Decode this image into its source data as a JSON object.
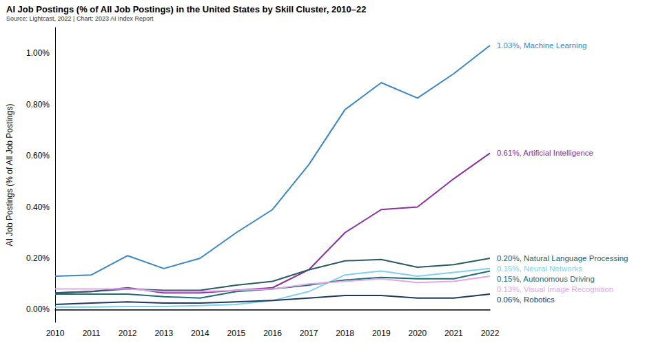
{
  "chart_data": {
    "type": "line",
    "title": "AI Job Postings (% of All Job Postings) in the United States by Skill Cluster, 2010–22",
    "subtitle": "Source: Lightcast, 2022 | Chart: 2023 AI Index Report",
    "y_label": "AI Job Postings (% of All Job Postings)",
    "categories": [
      "2010",
      "2011",
      "2012",
      "2013",
      "2014",
      "2015",
      "2016",
      "2017",
      "2018",
      "2019",
      "2020",
      "2021",
      "2022"
    ],
    "ylim": [
      -0.05,
      1.1
    ],
    "yticks": [
      {
        "value": 0,
        "label": "0.00%"
      },
      {
        "value": 0.2,
        "label": "0.20%"
      },
      {
        "value": 0.4,
        "label": "0.40%"
      },
      {
        "value": 0.6,
        "label": "0.60%"
      },
      {
        "value": 0.8,
        "label": "0.80%"
      },
      {
        "value": 1.0,
        "label": "1.00%"
      }
    ],
    "grid": false,
    "series": [
      {
        "name": "Machine Learning",
        "color": "#3a87c6",
        "end_label": "1.03%, Machine Learning",
        "values": [
          0.13,
          0.135,
          0.21,
          0.16,
          0.2,
          0.3,
          0.39,
          0.565,
          0.78,
          0.885,
          0.825,
          0.92,
          1.03
        ]
      },
      {
        "name": "Artificial Intelligence",
        "color": "#8b2fa0",
        "end_label": "0.61%, Artificial Intelligence",
        "values": [
          0.065,
          0.07,
          0.085,
          0.065,
          0.065,
          0.075,
          0.085,
          0.155,
          0.3,
          0.39,
          0.4,
          0.51,
          0.61
        ]
      },
      {
        "name": "Natural Language Processing",
        "color": "#2b5a63",
        "end_label": "0.20%, Natural Language Processing",
        "values": [
          0.065,
          0.07,
          0.08,
          0.075,
          0.075,
          0.095,
          0.11,
          0.155,
          0.19,
          0.195,
          0.165,
          0.175,
          0.2
        ]
      },
      {
        "name": "Neural Networks",
        "color": "#7fd0f0",
        "end_label": "0.16%, Neural Networks",
        "values": [
          0.01,
          0.01,
          0.012,
          0.012,
          0.015,
          0.02,
          0.035,
          0.07,
          0.135,
          0.15,
          0.13,
          0.145,
          0.16
        ]
      },
      {
        "name": "Autonomous Driving",
        "color": "#1f6e6e",
        "end_label": "0.15%, Autonomous Driving",
        "values": [
          0.06,
          0.06,
          0.06,
          0.05,
          0.045,
          0.07,
          0.08,
          0.095,
          0.115,
          0.125,
          0.12,
          0.12,
          0.15
        ]
      },
      {
        "name": "Visual Image Recognition",
        "color": "#e0a8e8",
        "end_label": "0.13%, Visual Image Recognition",
        "values": [
          0.08,
          0.08,
          0.08,
          0.07,
          0.07,
          0.075,
          0.08,
          0.1,
          0.11,
          0.12,
          0.105,
          0.11,
          0.13
        ]
      },
      {
        "name": "Robotics",
        "color": "#1d3a5c",
        "end_label": "0.06%, Robotics",
        "values": [
          0.02,
          0.025,
          0.03,
          0.025,
          0.025,
          0.03,
          0.035,
          0.045,
          0.055,
          0.055,
          0.045,
          0.045,
          0.06
        ]
      }
    ]
  }
}
